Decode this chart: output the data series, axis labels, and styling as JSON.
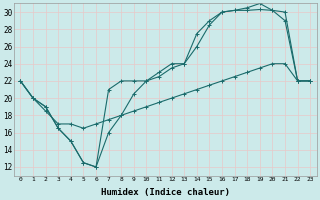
{
  "xlabel": "Humidex (Indice chaleur)",
  "xlim": [
    -0.5,
    23.5
  ],
  "ylim": [
    11,
    31
  ],
  "yticks": [
    12,
    14,
    16,
    18,
    20,
    22,
    24,
    26,
    28,
    30
  ],
  "xticks": [
    0,
    1,
    2,
    3,
    4,
    5,
    6,
    7,
    8,
    9,
    10,
    11,
    12,
    13,
    14,
    15,
    16,
    17,
    18,
    19,
    20,
    21,
    22,
    23
  ],
  "bg_color": "#cceaea",
  "grid_color": "#e8c8c8",
  "line_color": "#1a6b6b",
  "line1_x": [
    0,
    1,
    2,
    3,
    4,
    5,
    6,
    7,
    8,
    9,
    10,
    11,
    12,
    13,
    14,
    15,
    16,
    17,
    18,
    19,
    20,
    21,
    22,
    23
  ],
  "line1_y": [
    22,
    20,
    19,
    16.5,
    15,
    12.5,
    12,
    16,
    18,
    20.5,
    22,
    22.5,
    23.5,
    24,
    26,
    28.5,
    30,
    30.2,
    30.2,
    30.3,
    30.2,
    29,
    22,
    22
  ],
  "line2_x": [
    0,
    1,
    2,
    3,
    4,
    5,
    6,
    7,
    8,
    9,
    10,
    11,
    12,
    13,
    14,
    15,
    16,
    17,
    18,
    19,
    20,
    21,
    22,
    23
  ],
  "line2_y": [
    22,
    20,
    19,
    16.5,
    15,
    12.5,
    12,
    21,
    22,
    22,
    22,
    23,
    24,
    24,
    27.5,
    29,
    30,
    30.2,
    30.5,
    31,
    30.2,
    30,
    22,
    22
  ],
  "line3_x": [
    0,
    1,
    2,
    3,
    4,
    5,
    6,
    7,
    8,
    9,
    10,
    11,
    12,
    13,
    14,
    15,
    16,
    17,
    18,
    19,
    20,
    21,
    22,
    23
  ],
  "line3_y": [
    22,
    20,
    18.5,
    17,
    17,
    16.5,
    17,
    17.5,
    18,
    18.5,
    19,
    19.5,
    20,
    20.5,
    21,
    21.5,
    22,
    22.5,
    23,
    23.5,
    24,
    24,
    22,
    22
  ]
}
